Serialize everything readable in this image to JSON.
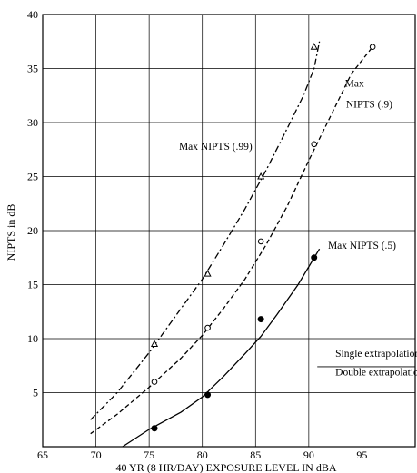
{
  "chart_data": {
    "type": "line",
    "title": "",
    "xlabel": "40 YR (8 HR/DAY) EXPOSURE LEVEL IN dBA",
    "ylabel": "NIPTS in dB",
    "xlim": [
      65,
      100
    ],
    "ylim": [
      0,
      40
    ],
    "xticks": [
      65,
      70,
      75,
      80,
      85,
      90,
      95
    ],
    "yticks": [
      5,
      10,
      15,
      20,
      25,
      30,
      35,
      40
    ],
    "grid": true,
    "series": [
      {
        "name": "Max NIPTS (.99)",
        "marker": "open-triangle",
        "color": "#000000",
        "points": [
          [
            75.5,
            9.5
          ],
          [
            80.5,
            16
          ],
          [
            85.5,
            25
          ],
          [
            90.5,
            37
          ]
        ],
        "curve": [
          [
            69.5,
            2.5
          ],
          [
            72,
            5
          ],
          [
            75,
            8.7
          ],
          [
            78,
            12.8
          ],
          [
            80,
            15.5
          ],
          [
            82,
            18.7
          ],
          [
            84,
            22
          ],
          [
            86,
            25.6
          ],
          [
            88,
            29.5
          ],
          [
            89.5,
            32.5
          ],
          [
            90.5,
            35
          ],
          [
            91,
            37.5
          ]
        ]
      },
      {
        "name": "Max NIPTS (.9)",
        "marker": "open-circle",
        "color": "#000000",
        "points": [
          [
            75.5,
            6
          ],
          [
            80.5,
            11
          ],
          [
            85.5,
            19
          ],
          [
            90.5,
            28
          ],
          [
            96,
            37
          ]
        ],
        "curve": [
          [
            69.5,
            1.2
          ],
          [
            72,
            3
          ],
          [
            75,
            5.5
          ],
          [
            78,
            8.2
          ],
          [
            80,
            10.3
          ],
          [
            82,
            12.8
          ],
          [
            84,
            15.5
          ],
          [
            86,
            18.7
          ],
          [
            88,
            22.3
          ],
          [
            90,
            26.5
          ],
          [
            92,
            30.5
          ],
          [
            94,
            34.5
          ],
          [
            96,
            37
          ]
        ]
      },
      {
        "name": "Max NIPTS (.5)",
        "marker": "filled-circle",
        "color": "#000000",
        "points": [
          [
            75.5,
            1.7
          ],
          [
            80.5,
            4.8
          ],
          [
            85.5,
            11.8
          ],
          [
            90.5,
            17.5
          ]
        ],
        "curve": [
          [
            72.5,
            0
          ],
          [
            75,
            1.6
          ],
          [
            78,
            3.2
          ],
          [
            80,
            4.6
          ],
          [
            82,
            6.5
          ],
          [
            84,
            8.6
          ],
          [
            85.5,
            10.2
          ],
          [
            87,
            12.2
          ],
          [
            89,
            15
          ],
          [
            91,
            18.3
          ]
        ]
      }
    ],
    "annotations": [
      {
        "text": "Max NIPTS (.99)",
        "x": 77.8,
        "y": 27.5
      },
      {
        "text": "Max",
        "x": 93.4,
        "y": 33.3
      },
      {
        "text": "NIPTS (.9)",
        "x": 93.5,
        "y": 31.4
      },
      {
        "text": "Max NIPTS (.5)",
        "x": 91.8,
        "y": 18.3
      },
      {
        "text": "Single extrapolation",
        "x": 92.5,
        "y": 8.3
      },
      {
        "text": "Double extrapolation",
        "x": 92.5,
        "y": 6.6
      }
    ]
  }
}
